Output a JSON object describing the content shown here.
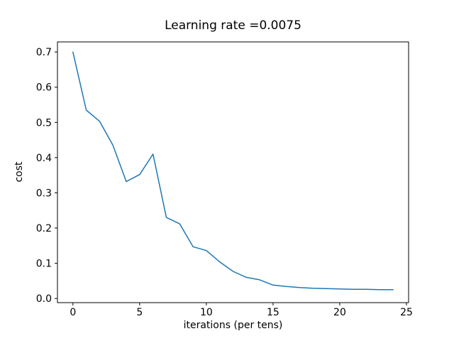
{
  "figure": {
    "background": "#ffffff",
    "text_color": "#000000",
    "spine_color": "#000000"
  },
  "chart_data": {
    "type": "line",
    "title": "Learning rate =0.0075",
    "xlabel": "iterations (per tens)",
    "ylabel": "cost",
    "x": [
      0,
      1,
      2,
      3,
      4,
      5,
      6,
      7,
      8,
      9,
      10,
      11,
      12,
      13,
      14,
      15,
      16,
      17,
      18,
      19,
      20,
      21,
      22,
      23,
      24
    ],
    "series": [
      {
        "name": "cost",
        "color": "#1f77b4",
        "values": [
          0.7,
          0.535,
          0.503,
          0.435,
          0.332,
          0.352,
          0.41,
          0.23,
          0.212,
          0.147,
          0.136,
          0.104,
          0.077,
          0.06,
          0.053,
          0.038,
          0.034,
          0.031,
          0.029,
          0.028,
          0.027,
          0.026,
          0.026,
          0.025,
          0.025
        ]
      }
    ],
    "xlim": [
      -1.16,
      25.16
    ],
    "ylim": [
      -0.0118,
      0.7286
    ],
    "xticks": [
      0,
      5,
      10,
      15,
      20,
      25
    ],
    "yticks": [
      0.0,
      0.1,
      0.2,
      0.3,
      0.4,
      0.5,
      0.6,
      0.7
    ],
    "grid": false,
    "legend": "none",
    "line_width": 1.5
  }
}
